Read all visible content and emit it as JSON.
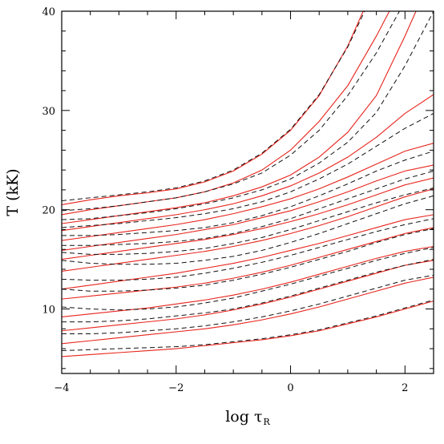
{
  "chart_data": {
    "type": "line",
    "xlim": [
      -4,
      2.5
    ],
    "ylim": [
      3.5,
      40
    ],
    "xticks": [
      -4,
      -2,
      0,
      2
    ],
    "yticks": [
      10,
      20,
      30,
      40
    ],
    "xtick_labels": [
      "−4",
      "−2",
      "0",
      "2"
    ],
    "ytick_labels": [
      "10",
      "20",
      "30",
      "40"
    ],
    "xlabel_main": "log τ",
    "xlabel_sub": "R",
    "ylabel": "T (kK)",
    "grid": false,
    "legend": "none",
    "colors": {
      "solid": "#e8241c",
      "dashed": "#111111"
    },
    "x": [
      -4,
      -3.5,
      -3,
      -2.5,
      -2,
      -1.5,
      -1,
      -0.5,
      0,
      0.5,
      1,
      1.5,
      2,
      2.5
    ],
    "series": [
      {
        "style": "solid",
        "values": [
          20.5,
          21.0,
          21.4,
          21.7,
          22.1,
          22.8,
          23.9,
          25.6,
          28.0,
          31.5,
          36.5,
          43,
          null,
          null
        ]
      },
      {
        "style": "dashed",
        "values": [
          20.9,
          21.2,
          21.5,
          21.8,
          22.2,
          22.9,
          24.0,
          25.7,
          28.1,
          31.6,
          36.4,
          42.5,
          null,
          null
        ]
      },
      {
        "style": "solid",
        "values": [
          19.5,
          20.0,
          20.4,
          20.8,
          21.2,
          21.8,
          22.7,
          24.0,
          26.0,
          28.9,
          32.5,
          37.5,
          43,
          null
        ]
      },
      {
        "style": "dashed",
        "values": [
          19.9,
          20.1,
          20.4,
          20.8,
          21.2,
          21.8,
          22.6,
          23.7,
          25.5,
          28.0,
          31.5,
          35.8,
          41,
          null
        ]
      },
      {
        "style": "solid",
        "values": [
          18.6,
          19.0,
          19.4,
          19.8,
          20.2,
          20.7,
          21.4,
          22.3,
          23.5,
          25.3,
          27.8,
          31.5,
          37.5,
          44
        ]
      },
      {
        "style": "dashed",
        "values": [
          19.0,
          19.1,
          19.4,
          19.7,
          20.1,
          20.6,
          21.2,
          22.0,
          23.1,
          24.7,
          26.8,
          29.8,
          34.5,
          40
        ]
      },
      {
        "style": "solid",
        "values": [
          17.9,
          18.3,
          18.7,
          19.1,
          19.5,
          20.0,
          20.6,
          21.4,
          22.4,
          23.7,
          25.3,
          27.3,
          29.7,
          31.6
        ]
      },
      {
        "style": "dashed",
        "values": [
          18.2,
          18.4,
          18.6,
          18.9,
          19.2,
          19.6,
          20.1,
          20.8,
          21.8,
          23.1,
          24.6,
          26.4,
          28.2,
          29.7
        ]
      },
      {
        "style": "solid",
        "values": [
          16.9,
          17.3,
          17.7,
          18.1,
          18.5,
          19.0,
          19.6,
          20.3,
          21.1,
          22.1,
          23.3,
          24.6,
          25.9,
          26.7
        ]
      },
      {
        "style": "dashed",
        "values": [
          17.4,
          17.4,
          17.5,
          17.7,
          17.9,
          18.2,
          18.7,
          19.4,
          20.3,
          21.4,
          22.6,
          23.9,
          25.0,
          25.9
        ]
      },
      {
        "style": "solid",
        "values": [
          15.9,
          16.3,
          16.7,
          17.1,
          17.5,
          18.0,
          18.5,
          19.2,
          19.9,
          20.8,
          21.8,
          22.9,
          23.9,
          24.5
        ]
      },
      {
        "style": "dashed",
        "values": [
          16.4,
          16.4,
          16.5,
          16.6,
          16.8,
          17.1,
          17.6,
          18.3,
          19.1,
          20.1,
          21.1,
          22.1,
          23.1,
          23.9
        ]
      },
      {
        "style": "solid",
        "values": [
          15.0,
          15.4,
          15.8,
          16.2,
          16.6,
          17.0,
          17.5,
          18.1,
          18.8,
          19.6,
          20.5,
          21.5,
          22.5,
          23.2
        ]
      },
      {
        "style": "dashed",
        "values": [
          15.7,
          15.5,
          15.5,
          15.6,
          15.8,
          16.1,
          16.6,
          17.2,
          18.0,
          18.9,
          19.8,
          20.7,
          21.5,
          22.2
        ]
      },
      {
        "style": "solid",
        "values": [
          13.8,
          14.2,
          14.6,
          15.0,
          15.4,
          15.8,
          16.3,
          16.9,
          17.6,
          18.4,
          19.3,
          20.3,
          21.3,
          22.1
        ]
      },
      {
        "style": "dashed",
        "values": [
          14.9,
          14.6,
          14.5,
          14.5,
          14.6,
          14.9,
          15.3,
          15.9,
          16.7,
          17.6,
          18.6,
          19.6,
          20.6,
          21.4
        ]
      },
      {
        "style": "solid",
        "values": [
          12.0,
          12.4,
          12.8,
          13.2,
          13.6,
          14.1,
          14.6,
          15.2,
          15.9,
          16.6,
          17.4,
          18.2,
          19.0,
          19.5
        ]
      },
      {
        "style": "dashed",
        "values": [
          13.0,
          12.9,
          12.9,
          13.0,
          13.2,
          13.6,
          14.1,
          14.7,
          15.4,
          16.2,
          17.0,
          17.8,
          18.5,
          19.1
        ]
      },
      {
        "style": "solid",
        "values": [
          11.0,
          11.3,
          11.6,
          11.9,
          12.2,
          12.6,
          13.1,
          13.7,
          14.4,
          15.2,
          16.0,
          16.8,
          17.6,
          18.2
        ]
      },
      {
        "style": "dashed",
        "values": [
          12.0,
          11.8,
          11.8,
          11.9,
          12.1,
          12.4,
          12.9,
          13.5,
          14.2,
          15.0,
          15.8,
          16.7,
          17.5,
          18.1
        ]
      },
      {
        "style": "solid",
        "values": [
          9.2,
          9.5,
          9.8,
          10.1,
          10.5,
          10.9,
          11.4,
          12.0,
          12.7,
          13.5,
          14.3,
          15.1,
          15.8,
          16.3
        ]
      },
      {
        "style": "dashed",
        "values": [
          10.2,
          10.0,
          9.9,
          10.0,
          10.2,
          10.6,
          11.1,
          11.8,
          12.5,
          13.3,
          14.1,
          14.9,
          15.6,
          16.2
        ]
      },
      {
        "style": "solid",
        "values": [
          7.8,
          8.1,
          8.4,
          8.7,
          9.0,
          9.4,
          9.9,
          10.5,
          11.2,
          12.0,
          12.8,
          13.6,
          14.4,
          14.9
        ]
      },
      {
        "style": "dashed",
        "values": [
          8.7,
          8.7,
          8.8,
          9.0,
          9.3,
          9.6,
          10.0,
          10.6,
          11.3,
          12.1,
          12.9,
          13.7,
          14.4,
          15.0
        ]
      },
      {
        "style": "solid",
        "values": [
          6.5,
          6.8,
          7.1,
          7.4,
          7.7,
          8.0,
          8.4,
          8.9,
          9.5,
          10.2,
          11.0,
          11.8,
          12.6,
          13.2
        ]
      },
      {
        "style": "dashed",
        "values": [
          7.5,
          7.5,
          7.6,
          7.8,
          8.0,
          8.3,
          8.7,
          9.2,
          9.8,
          10.5,
          11.3,
          12.1,
          12.9,
          13.4
        ]
      },
      {
        "style": "solid",
        "values": [
          5.2,
          5.4,
          5.6,
          5.8,
          6.0,
          6.3,
          6.6,
          6.9,
          7.3,
          7.8,
          8.5,
          9.2,
          10.0,
          10.8
        ]
      },
      {
        "style": "dashed",
        "values": [
          5.8,
          5.9,
          6.0,
          6.1,
          6.2,
          6.4,
          6.7,
          7.0,
          7.4,
          7.9,
          8.6,
          9.3,
          10.1,
          10.9
        ]
      }
    ]
  }
}
